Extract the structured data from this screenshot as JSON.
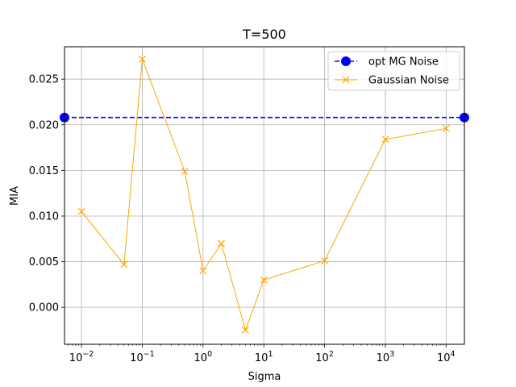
{
  "chart_data": {
    "type": "line",
    "title": "T=500",
    "xlabel": "Sigma",
    "ylabel": "MIA",
    "xscale": "log",
    "xlim": [
      0.00525,
      20000
    ],
    "ylim": [
      -0.00405,
      0.02855
    ],
    "grid": true,
    "legend_position": "top-right",
    "x_tick_labels": [
      {
        "value": 0.01,
        "base": "10",
        "exp": "−2"
      },
      {
        "value": 0.1,
        "base": "10",
        "exp": "−1"
      },
      {
        "value": 1,
        "base": "10",
        "exp": "0"
      },
      {
        "value": 10,
        "base": "10",
        "exp": "1"
      },
      {
        "value": 100,
        "base": "10",
        "exp": "2"
      },
      {
        "value": 1000,
        "base": "10",
        "exp": "3"
      },
      {
        "value": 10000,
        "base": "10",
        "exp": "4"
      }
    ],
    "y_tick_labels": [
      {
        "value": 0.0,
        "label": "0.000"
      },
      {
        "value": 0.005,
        "label": "0.005"
      },
      {
        "value": 0.01,
        "label": "0.010"
      },
      {
        "value": 0.015,
        "label": "0.015"
      },
      {
        "value": 0.02,
        "label": "0.020"
      },
      {
        "value": 0.025,
        "label": "0.025"
      }
    ],
    "series": [
      {
        "name": "opt MG Noise",
        "color": "#0000ff",
        "style": "dashed",
        "marker": "circle",
        "x": [
          0.00525,
          20000
        ],
        "y": [
          0.0208,
          0.0208
        ]
      },
      {
        "name": "Gaussian Noise",
        "color": "#ffa500",
        "style": "solid",
        "marker": "x",
        "x": [
          0.01,
          0.05,
          0.1,
          0.5,
          1,
          2,
          5,
          10,
          100,
          1000,
          10000
        ],
        "y": [
          0.0105,
          0.0047,
          0.0272,
          0.0149,
          0.004,
          0.007,
          -0.0025,
          0.003,
          0.0051,
          0.0184,
          0.0196
        ]
      }
    ]
  }
}
